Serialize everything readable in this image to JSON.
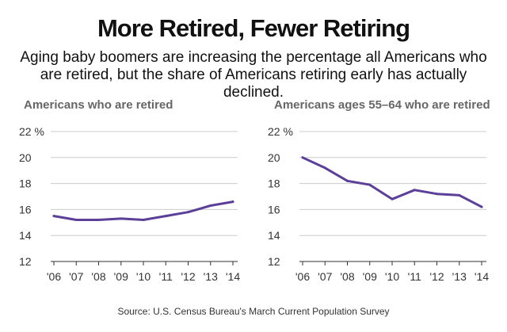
{
  "title": "More Retired, Fewer Retiring",
  "subtitle": "Aging baby boomers are increasing the percentage all Americans who are retired, but the share of Americans retiring early has actually declined.",
  "source": "Source: U.S. Census Bureau's March Current Population Survey",
  "colors": {
    "line": "#5b3f99",
    "grid": "#cccccc",
    "text": "#333333"
  },
  "chart_data": [
    {
      "type": "line",
      "title": "Americans who are retired",
      "categories": [
        "'06",
        "'07",
        "'08",
        "'09",
        "'10",
        "'11",
        "'12",
        "'13",
        "'14"
      ],
      "values": [
        15.5,
        15.2,
        15.2,
        15.3,
        15.2,
        15.5,
        15.8,
        16.3,
        16.6
      ],
      "ylim": [
        12,
        22
      ],
      "yticks": [
        "12",
        "14",
        "16",
        "18",
        "20",
        "22 %"
      ],
      "grid": true
    },
    {
      "type": "line",
      "title": "Americans ages 55–64 who are retired",
      "categories": [
        "'06",
        "'07",
        "'08",
        "'09",
        "'10",
        "'11",
        "'12",
        "'13",
        "'14"
      ],
      "values": [
        20.0,
        19.2,
        18.2,
        17.9,
        16.8,
        17.5,
        17.2,
        17.1,
        16.2
      ],
      "ylim": [
        12,
        22
      ],
      "yticks": [
        "12",
        "14",
        "16",
        "18",
        "20",
        "22 %"
      ],
      "grid": true
    }
  ]
}
